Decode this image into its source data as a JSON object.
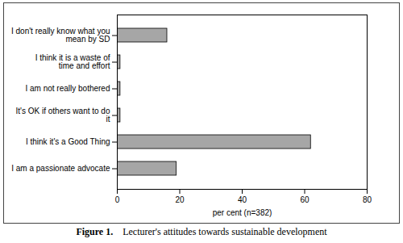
{
  "chart_data": {
    "type": "bar",
    "orientation": "horizontal",
    "title": "Figure 1.    Lecturer's attitudes towards sustainable development",
    "x_label": "per cent (n=382)",
    "categories": [
      "I don't really know what you mean by SD",
      "I think it is a waste of time and effort",
      "I am not really bothered",
      "It's OK if others want to do it",
      "I think it's a Good Thing",
      "I am a passionate advocate"
    ],
    "values": [
      16,
      1,
      1,
      1,
      62,
      19
    ],
    "color": "#a6a6a6",
    "xlim": [
      0,
      80
    ],
    "xticks": [
      0,
      20,
      40,
      60,
      80
    ],
    "grid": false
  }
}
